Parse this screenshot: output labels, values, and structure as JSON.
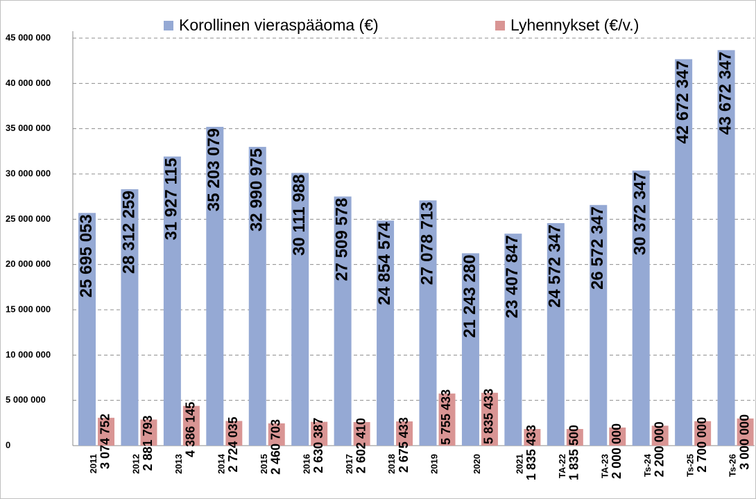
{
  "chart_data": {
    "type": "bar",
    "categories": [
      "2011",
      "2012",
      "2013",
      "2014",
      "2015",
      "2016",
      "2017",
      "2018",
      "2019",
      "2020",
      "2021",
      "TA-22",
      "TA-23",
      "Ts-24",
      "Ts-25",
      "Ts-26"
    ],
    "series": [
      {
        "name": "Korollinen vieraspääoma (€)",
        "color": "#95a9d4",
        "values": [
          25695053,
          28312259,
          31927115,
          35203079,
          32990975,
          30111988,
          27509578,
          24854574,
          27078713,
          21243280,
          23407847,
          24572347,
          26572347,
          30372347,
          42672347,
          43672347
        ],
        "value_labels": [
          "25 695 053",
          "28 312 259",
          "31 927 115",
          "35 203 079",
          "32 990 975",
          "30 111 988",
          "27 509 578",
          "24 854 574",
          "27 078 713",
          "21 243 280",
          "23 407 847",
          "24 572 347",
          "26 572 347",
          "30 372 347",
          "42 672 347",
          "43 672 347"
        ]
      },
      {
        "name": "Lyhennykset (€/v.)",
        "color": "#d99594",
        "values": [
          3074752,
          2881793,
          4386145,
          2724035,
          2460703,
          2630387,
          2602410,
          2675433,
          5755433,
          5835433,
          1835433,
          1835500,
          2000000,
          2200000,
          2700000,
          3000000
        ],
        "value_labels": [
          "3 074 752",
          "2 881 793",
          "4 386 145",
          "2 724 035",
          "2 460 703",
          "2 630 387",
          "2 602 410",
          "2 675 433",
          "5 755 433",
          "5 835 433",
          "1 835 433",
          "1 835 500",
          "2 000 000",
          "2 200 000",
          "2 700 000",
          "3 000 000"
        ]
      }
    ],
    "ylim": [
      0,
      45000000
    ],
    "yticks": [
      0,
      {
        "value": 5000000,
        "label": "5 000 000"
      },
      {
        "value": 10000000,
        "label": "10 000 000"
      },
      {
        "value": 15000000,
        "label": "15 000 000"
      },
      {
        "value": 20000000,
        "label": "20 000 000"
      },
      {
        "value": 25000000,
        "label": "25 000 000"
      },
      {
        "value": 30000000,
        "label": "30 000 000"
      },
      {
        "value": 35000000,
        "label": "35 000 000"
      },
      {
        "value": 40000000,
        "label": "40 000 000"
      },
      {
        "value": 45000000,
        "label": "45 000 000"
      }
    ],
    "grid": true,
    "legend": "top"
  }
}
